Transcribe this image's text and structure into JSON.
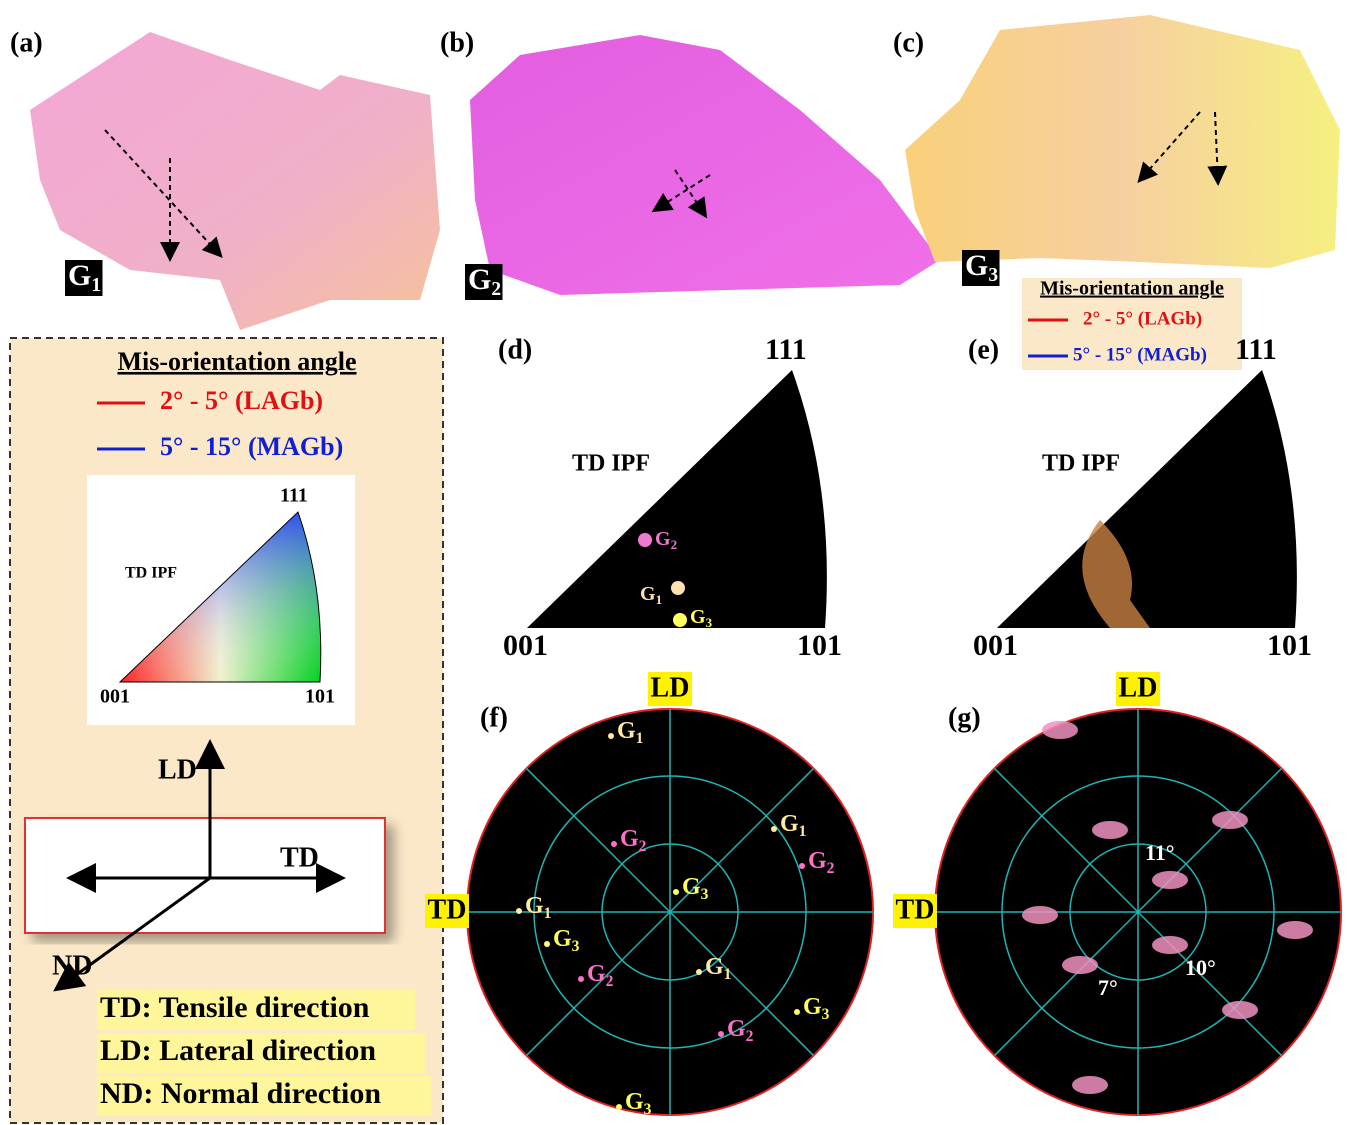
{
  "maps": [
    {
      "label": "(a)",
      "grain": {
        "base": "G",
        "sub": "1"
      }
    },
    {
      "label": "(b)",
      "grain": {
        "base": "G",
        "sub": "2"
      }
    },
    {
      "label": "(c)",
      "grain": {
        "base": "G",
        "sub": "3"
      }
    }
  ],
  "legend": {
    "title": "Mis-orientation angle",
    "items": [
      "2° - 5° (LAGb)",
      "5° - 15° (MAGb)"
    ]
  },
  "ipf_key": {
    "title": "TD IPF",
    "corners": [
      "001",
      "101",
      "111"
    ]
  },
  "directions": {
    "labels": [
      "LD",
      "TD",
      "ND"
    ],
    "definitions": [
      "TD: Tensile direction",
      "LD: Lateral direction",
      "ND: Normal direction"
    ]
  },
  "ipf_plots": [
    {
      "label": "(d)",
      "title": "TD IPF",
      "corners": [
        "001",
        "101",
        "111"
      ],
      "grains": [
        {
          "base": "G",
          "sub": "2"
        },
        {
          "base": "G",
          "sub": "1"
        },
        {
          "base": "G",
          "sub": "3"
        }
      ]
    },
    {
      "label": "(e)",
      "title": "TD IPF",
      "corners": [
        "001",
        "101",
        "111"
      ]
    }
  ],
  "pole_figures": [
    {
      "label": "(f)",
      "top": "LD",
      "left": "TD",
      "grains": [
        {
          "base": "G",
          "sub": "1"
        },
        {
          "base": "G",
          "sub": "1"
        },
        {
          "base": "G",
          "sub": "1"
        },
        {
          "base": "G",
          "sub": "1"
        },
        {
          "base": "G",
          "sub": "2"
        },
        {
          "base": "G",
          "sub": "2"
        },
        {
          "base": "G",
          "sub": "2"
        },
        {
          "base": "G",
          "sub": "2"
        },
        {
          "base": "G",
          "sub": "3"
        },
        {
          "base": "G",
          "sub": "3"
        },
        {
          "base": "G",
          "sub": "3"
        },
        {
          "base": "G",
          "sub": "3"
        }
      ]
    },
    {
      "label": "(g)",
      "top": "LD",
      "left": "TD",
      "angles": [
        "11°",
        "10°",
        "7°"
      ]
    }
  ]
}
